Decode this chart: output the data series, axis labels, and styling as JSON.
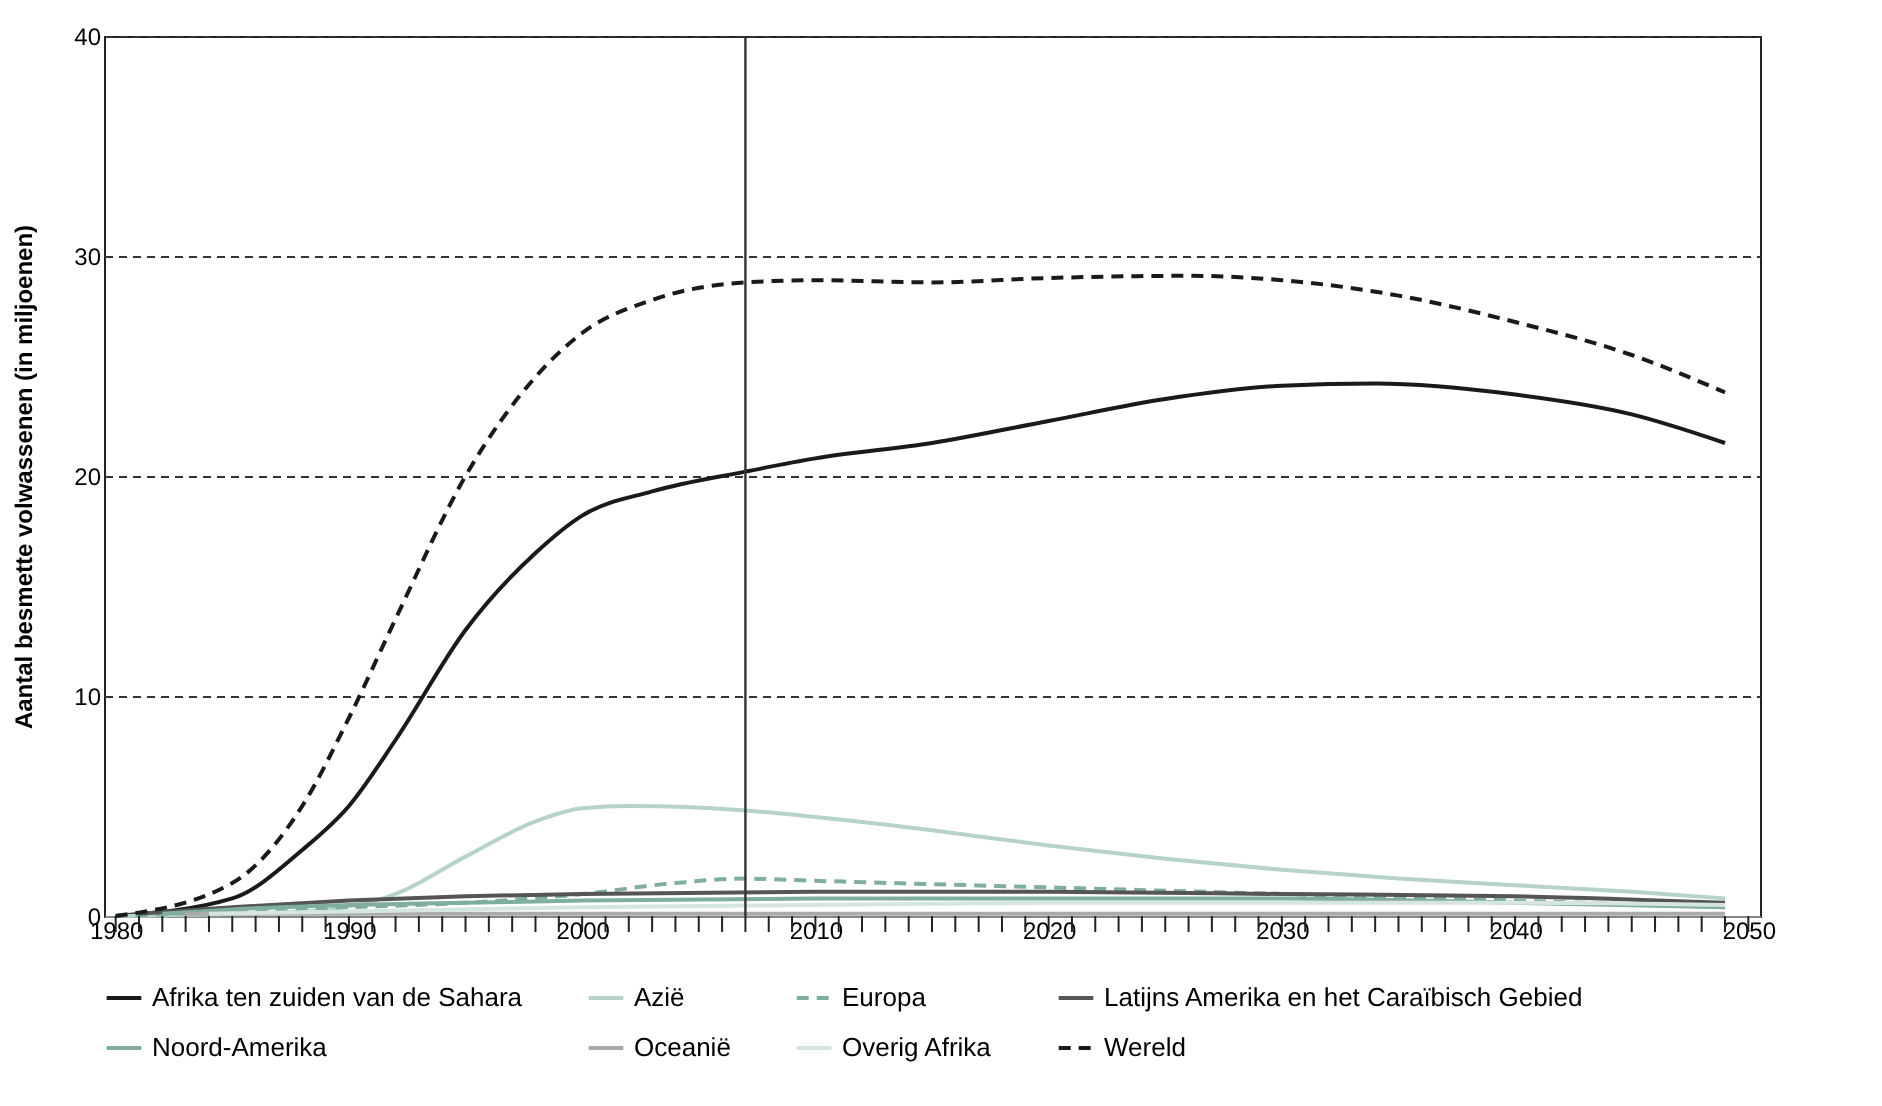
{
  "chart_data": {
    "type": "line",
    "ylabel": "Aantal besmette volwassenen (in miljoenen)",
    "xlim": [
      1979.5,
      2050.5
    ],
    "xticks": [
      1980,
      {
        "value": 1981,
        "label": null
      },
      {
        "value": 1982,
        "label": null
      },
      {
        "value": 1983,
        "label": null
      },
      {
        "value": 1984,
        "label": null
      },
      {
        "value": 1985,
        "label": null
      },
      {
        "value": 1986,
        "label": null
      },
      {
        "value": 1987,
        "label": null
      },
      {
        "value": 1988,
        "label": null
      },
      {
        "value": 1989,
        "label": null
      },
      1990,
      {
        "value": 1991,
        "label": null
      },
      {
        "value": 1992,
        "label": null
      },
      {
        "value": 1993,
        "label": null
      },
      {
        "value": 1994,
        "label": null
      },
      {
        "value": 1995,
        "label": null
      },
      {
        "value": 1996,
        "label": null
      },
      {
        "value": 1997,
        "label": null
      },
      {
        "value": 1998,
        "label": null
      },
      {
        "value": 1999,
        "label": null
      },
      2000,
      {
        "value": 2001,
        "label": null
      },
      {
        "value": 2002,
        "label": null
      },
      {
        "value": 2003,
        "label": null
      },
      {
        "value": 2004,
        "label": null
      },
      {
        "value": 2005,
        "label": null
      },
      {
        "value": 2006,
        "label": null
      },
      {
        "value": 2007,
        "label": null
      },
      {
        "value": 2008,
        "label": null
      },
      {
        "value": 2009,
        "label": null
      },
      2010,
      {
        "value": 2011,
        "label": null
      },
      {
        "value": 2012,
        "label": null
      },
      {
        "value": 2013,
        "label": null
      },
      {
        "value": 2014,
        "label": null
      },
      {
        "value": 2015,
        "label": null
      },
      {
        "value": 2016,
        "label": null
      },
      {
        "value": 2017,
        "label": null
      },
      {
        "value": 2018,
        "label": null
      },
      {
        "value": 2019,
        "label": null
      },
      2020,
      {
        "value": 2021,
        "label": null
      },
      {
        "value": 2022,
        "label": null
      },
      {
        "value": 2023,
        "label": null
      },
      {
        "value": 2024,
        "label": null
      },
      {
        "value": 2025,
        "label": null
      },
      {
        "value": 2026,
        "label": null
      },
      {
        "value": 2027,
        "label": null
      },
      {
        "value": 2028,
        "label": null
      },
      {
        "value": 2029,
        "label": null
      },
      2030,
      {
        "value": 2031,
        "label": null
      },
      {
        "value": 2032,
        "label": null
      },
      {
        "value": 2033,
        "label": null
      },
      {
        "value": 2034,
        "label": null
      },
      {
        "value": 2035,
        "label": null
      },
      {
        "value": 2036,
        "label": null
      },
      {
        "value": 2037,
        "label": null
      },
      {
        "value": 2038,
        "label": null
      },
      {
        "value": 2039,
        "label": null
      },
      2040,
      {
        "value": 2041,
        "label": null
      },
      {
        "value": 2042,
        "label": null
      },
      {
        "value": 2043,
        "label": null
      },
      {
        "value": 2044,
        "label": null
      },
      {
        "value": 2045,
        "label": null
      },
      {
        "value": 2046,
        "label": null
      },
      {
        "value": 2047,
        "label": null
      },
      {
        "value": 2048,
        "label": null
      },
      {
        "value": 2049,
        "label": null
      },
      2050
    ],
    "ylim": [
      0,
      40
    ],
    "yticks": [
      0,
      10,
      20,
      30,
      40
    ],
    "grid": "y",
    "legend": "bottom",
    "marker": "none",
    "ref_lines": [
      {
        "axis": "x",
        "value": 2007,
        "color": "#333333",
        "line_style": "solid"
      }
    ],
    "series": [
      {
        "name": "Afrika ten zuiden van de Sahara",
        "color": "#1a1a1a",
        "line_style": "solid",
        "x": [
          1980,
          1985,
          1988,
          1990,
          1992,
          1995,
          1998,
          2000,
          2003,
          2007,
          2010,
          2015,
          2020,
          2025,
          2030,
          2034,
          2040,
          2045,
          2049
        ],
        "values": [
          0,
          0.8,
          3,
          5,
          8,
          13,
          16.5,
          18.2,
          19.3,
          20.2,
          20.8,
          21.5,
          22.5,
          23.5,
          24.1,
          24.2,
          23.7,
          22.8,
          21.5
        ]
      },
      {
        "name": "Azië",
        "color": "#b5d3c8",
        "line_style": "solid",
        "x": [
          1980,
          1988,
          1992,
          1995,
          1998,
          2000,
          2002,
          2007,
          2010,
          2015,
          2020,
          2025,
          2030,
          2035,
          2040,
          2045,
          2049
        ],
        "values": [
          0,
          0.2,
          1,
          2.7,
          4.3,
          4.9,
          5.0,
          4.8,
          4.5,
          3.9,
          3.2,
          2.6,
          2.1,
          1.7,
          1.4,
          1.1,
          0.8
        ]
      },
      {
        "name": "Europa",
        "color": "#7fae9e",
        "line_style": "dashed",
        "x": [
          1980,
          1985,
          1990,
          1995,
          2000,
          2004,
          2007,
          2010,
          2020,
          2030,
          2040,
          2049
        ],
        "values": [
          0,
          0.2,
          0.4,
          0.6,
          1.0,
          1.5,
          1.7,
          1.6,
          1.3,
          1.0,
          0.7,
          0.4
        ]
      },
      {
        "name": "Latijns Amerika en het Caraïbisch Gebied",
        "color": "#555555",
        "line_style": "solid",
        "x": [
          1981,
          1985,
          1990,
          1995,
          2000,
          2010,
          2020,
          2030,
          2040,
          2049
        ],
        "values": [
          0.1,
          0.4,
          0.7,
          0.9,
          1.0,
          1.1,
          1.1,
          1.0,
          0.9,
          0.6
        ]
      },
      {
        "name": "Noord-Amerika",
        "color": "#7fae9e",
        "line_style": "solid",
        "x": [
          1982,
          1985,
          1990,
          1995,
          2000,
          2010,
          2020,
          2030,
          2040,
          2049
        ],
        "values": [
          0.1,
          0.3,
          0.5,
          0.6,
          0.7,
          0.8,
          0.8,
          0.8,
          0.6,
          0.4
        ]
      },
      {
        "name": "Oceanië",
        "color": "#aaaaaa",
        "line_style": "solid",
        "x": [
          1983,
          1990,
          2000,
          2010,
          2020,
          2030,
          2040,
          2049
        ],
        "values": [
          0.1,
          0.1,
          0.1,
          0.1,
          0.1,
          0.1,
          0.1,
          0.1
        ]
      },
      {
        "name": "Overig Afrika",
        "color": "#d5e6df",
        "line_style": "solid",
        "x": [
          1984,
          1990,
          2000,
          2010,
          2020,
          2030,
          2040,
          2049
        ],
        "values": [
          0.1,
          0.2,
          0.4,
          0.5,
          0.6,
          0.6,
          0.6,
          0.5
        ]
      },
      {
        "name": "Wereld",
        "color": "#1a1a1a",
        "line_style": "dashed",
        "x": [
          1980,
          1985,
          1988,
          1990,
          1992,
          1995,
          1998,
          2000,
          2003,
          2007,
          2010,
          2015,
          2020,
          2026,
          2030,
          2035,
          2040,
          2045,
          2049
        ],
        "values": [
          0,
          1.5,
          5,
          9,
          13.5,
          20,
          24.5,
          26.5,
          28,
          28.8,
          28.9,
          28.8,
          29,
          29.1,
          28.9,
          28.2,
          27,
          25.5,
          23.8
        ]
      }
    ]
  }
}
